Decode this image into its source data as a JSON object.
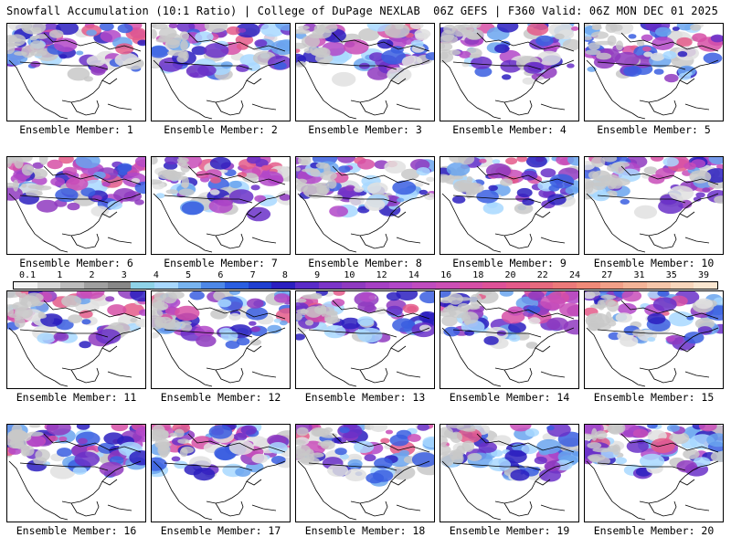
{
  "header": {
    "title_left": "Snowfall Accumulation (10:1 Ratio) | College of DuPage NEXLAB",
    "title_right": "06Z GEFS | F360 Valid: 06Z MON DEC 01 2025"
  },
  "colorbar": {
    "labels": [
      "0.1",
      "1",
      "2",
      "3",
      "4",
      "5",
      "6",
      "7",
      "8",
      "9",
      "10",
      "12",
      "14",
      "16",
      "18",
      "20",
      "22",
      "24",
      "27",
      "31",
      "35",
      "39"
    ],
    "colors": [
      "#f2f2f2",
      "#d8d8d8",
      "#bdbdbd",
      "#a0a0a0",
      "#888888",
      "#8fd3e8",
      "#a8d8ff",
      "#78b4f0",
      "#4d88e8",
      "#2a5ee0",
      "#1f3fd0",
      "#2b1fc0",
      "#5a2bc8",
      "#7b35c8",
      "#8f3ac0",
      "#a640c4",
      "#b247c8",
      "#c04cbf",
      "#cc4fb5",
      "#d64fa6",
      "#de5298",
      "#e45a8a",
      "#e86a7f",
      "#ec7a7a",
      "#f08a78",
      "#f2a088",
      "#f4b498",
      "#f6c6aa",
      "#f8d6bc",
      "#fae6d0"
    ]
  },
  "panels": [
    {
      "label": "Ensemble Member: 1"
    },
    {
      "label": "Ensemble Member: 2"
    },
    {
      "label": "Ensemble Member: 3"
    },
    {
      "label": "Ensemble Member: 4"
    },
    {
      "label": "Ensemble Member: 5"
    },
    {
      "label": "Ensemble Member: 6"
    },
    {
      "label": "Ensemble Member: 7"
    },
    {
      "label": "Ensemble Member: 8"
    },
    {
      "label": "Ensemble Member: 9"
    },
    {
      "label": "Ensemble Member: 10"
    },
    {
      "label": "Ensemble Member: 11"
    },
    {
      "label": "Ensemble Member: 12"
    },
    {
      "label": "Ensemble Member: 13"
    },
    {
      "label": "Ensemble Member: 14"
    },
    {
      "label": "Ensemble Member: 15"
    },
    {
      "label": "Ensemble Member: 16"
    },
    {
      "label": "Ensemble Member: 17"
    },
    {
      "label": "Ensemble Member: 18"
    },
    {
      "label": "Ensemble Member: 19"
    },
    {
      "label": "Ensemble Member: 20"
    }
  ]
}
